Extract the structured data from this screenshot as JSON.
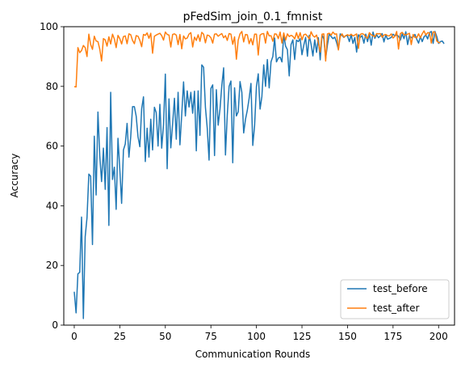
{
  "chart_data": {
    "type": "line",
    "title": "pFedSim_join_0.1_fmnist",
    "xlabel": "Communication Rounds",
    "ylabel": "Accuracy",
    "xlim": [
      -5.75,
      208.75
    ],
    "ylim": [
      0,
      100
    ],
    "xticks": [
      0,
      25,
      50,
      75,
      100,
      125,
      150,
      175,
      200
    ],
    "yticks": [
      0,
      20,
      40,
      60,
      80,
      100
    ],
    "legend_position": "lower-right",
    "series": [
      {
        "name": "test_before",
        "color": "#1f77b4",
        "values": [
          11.2,
          4.1,
          17.2,
          17.7,
          36.2,
          2.2,
          29.6,
          36.0,
          50.6,
          49.9,
          27.0,
          63.3,
          43.6,
          71.4,
          56.8,
          48.1,
          59.3,
          45.5,
          66.2,
          33.4,
          78.0,
          48.8,
          52.9,
          38.8,
          62.6,
          52.4,
          40.8,
          58.7,
          60.7,
          67.6,
          56.3,
          63.1,
          73.2,
          73.2,
          70.0,
          63.1,
          59.8,
          72.5,
          76.5,
          54.8,
          66.0,
          56.3,
          69.0,
          58.7,
          73.0,
          71.2,
          60.0,
          74.0,
          59.3,
          67.2,
          84.1,
          52.4,
          75.8,
          59.4,
          67.5,
          76.0,
          62.3,
          78.0,
          60.4,
          70.6,
          81.5,
          70.1,
          78.5,
          73.1,
          78.0,
          71.0,
          78.4,
          58.4,
          78.5,
          63.6,
          87.2,
          86.4,
          73.0,
          66.0,
          55.3,
          79.3,
          80.5,
          56.8,
          78.9,
          67.0,
          72.4,
          80.3,
          86.2,
          57.0,
          70.5,
          80.0,
          81.8,
          54.4,
          79.5,
          70.1,
          71.5,
          81.6,
          78.0,
          64.4,
          69.0,
          72.0,
          76.0,
          81.0,
          60.2,
          66.9,
          80.0,
          84.2,
          72.4,
          76.6,
          87.2,
          80.0,
          89.0,
          79.5,
          88.2,
          90.0,
          96.2,
          88.2,
          89.5,
          89.8,
          88.2,
          97.3,
          93.5,
          92.3,
          83.5,
          94.0,
          95.6,
          89.0,
          95.5,
          95.0,
          96.0,
          90.6,
          93.8,
          96.4,
          90.1,
          97.1,
          94.1,
          90.2,
          95.6,
          91.4,
          96.3,
          88.9,
          97.2,
          95.9,
          89.4,
          94.0,
          97.6,
          96.7,
          96.0,
          96.5,
          94.7,
          92.4,
          97.6,
          97.1,
          96.4,
          97.0,
          96.9,
          95.0,
          97.3,
          94.4,
          96.4,
          91.5,
          97.3,
          96.4,
          97.0,
          94.5,
          97.5,
          95.0,
          97.6,
          93.8,
          98.2,
          96.1,
          97.3,
          96.3,
          96.9,
          97.7,
          94.9,
          97.2,
          95.8,
          96.1,
          96.4,
          97.5,
          96.9,
          97.3,
          96.8,
          95.5,
          97.6,
          96.0,
          98.3,
          94.0,
          97.0,
          96.3,
          96.6,
          97.4,
          95.8,
          94.5,
          96.7,
          95.0,
          96.6,
          97.2,
          95.9,
          98.0,
          98.4,
          94.4,
          98.4,
          96.7,
          94.4,
          95.0,
          95.2,
          94.3
        ]
      },
      {
        "name": "test_after",
        "color": "#ff7f0e",
        "values": [
          79.9,
          79.8,
          93.0,
          91.3,
          92.0,
          93.7,
          93.0,
          90.0,
          97.5,
          94.0,
          92.4,
          96.8,
          95.2,
          95.0,
          92.5,
          88.5,
          96.0,
          95.6,
          93.5,
          96.6,
          94.2,
          97.5,
          95.9,
          93.0,
          97.1,
          96.0,
          94.2,
          96.7,
          96.9,
          94.3,
          97.6,
          97.3,
          95.4,
          94.3,
          97.0,
          96.8,
          95.4,
          93.3,
          97.4,
          97.1,
          97.9,
          96.1,
          97.8,
          91.1,
          96.8,
          97.2,
          97.5,
          97.8,
          97.0,
          95.5,
          98.2,
          97.4,
          97.2,
          93.2,
          97.4,
          97.6,
          97.2,
          94.0,
          97.4,
          92.6,
          96.9,
          95.9,
          96.2,
          97.5,
          98.0,
          93.2,
          96.5,
          95.4,
          97.3,
          95.1,
          98.1,
          97.5,
          94.6,
          97.2,
          97.0,
          96.3,
          94.5,
          97.5,
          97.6,
          96.8,
          97.3,
          97.7,
          96.3,
          97.0,
          95.4,
          97.7,
          97.5,
          94.1,
          96.6,
          89.1,
          95.5,
          97.6,
          98.4,
          94.9,
          97.4,
          97.3,
          94.3,
          96.0,
          93.9,
          97.5,
          97.5,
          90.5,
          97.2,
          97.6,
          97.7,
          94.5,
          98.4,
          96.9,
          97.0,
          95.1,
          97.6,
          97.5,
          96.0,
          98.2,
          94.5,
          97.9,
          95.5,
          97.6,
          96.7,
          97.1,
          96.8,
          95.9,
          98.0,
          96.0,
          98.0,
          95.6,
          97.3,
          97.5,
          96.8,
          95.9,
          98.3,
          97.0,
          96.5,
          97.2,
          94.8,
          91.5,
          97.5,
          97.6,
          88.5,
          97.6,
          97.8,
          97.2,
          98.2,
          97.5,
          97.6,
          92.2,
          96.7,
          97.6,
          96.5,
          97.0,
          97.3,
          97.0,
          97.5,
          96.9,
          97.2,
          97.6,
          92.7,
          97.4,
          97.7,
          97.4,
          96.6,
          96.1,
          98.0,
          97.3,
          97.0,
          96.6,
          97.7,
          97.6,
          97.7,
          96.5,
          97.2,
          97.4,
          97.0,
          96.9,
          97.6,
          96.2,
          96.8,
          98.4,
          92.5,
          97.7,
          98.1,
          97.3,
          97.3,
          97.5,
          97.8,
          94.0,
          97.4,
          96.4,
          96.3,
          97.6,
          96.3,
          97.6,
          98.6,
          97.2,
          98.0,
          97.9,
          94.5,
          98.3,
          98.1,
          95.2,
          94.7,
          94.6
        ]
      }
    ]
  }
}
